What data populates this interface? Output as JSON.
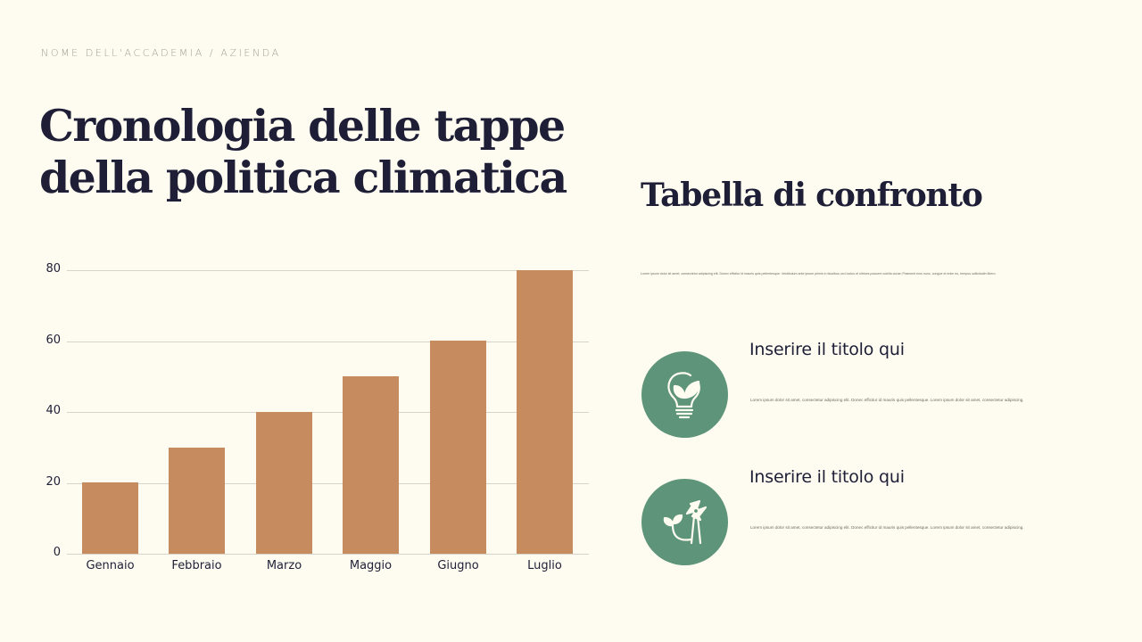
{
  "header": {
    "organization": "NOME DELL'ACCADEMIA / AZIENDA",
    "title": "Cronologia delle tappe della politica climatica"
  },
  "comparison": {
    "title": "Tabella di confronto",
    "intro": "Lorem ipsum dolor sit amet, consectetur adipiscing elit. Donec efficitur id mauris quis pellentesque. Vestibulum ante ipsum primis in faucibus orci luctus et ultrices posuere cubilia curae; Praesent eros nunc, congue et enim eu, tempus sollicitudin libero.",
    "items": [
      {
        "title": "Inserire il titolo qui",
        "description": "Lorem ipsum dolor sit amet, consectetur adipiscing elit. Donec efficitur id mauris quis pellentesque. Lorem ipsum dolor sit amet, consectetur adipiscing.",
        "icon": "lightbulb-leaf-icon"
      },
      {
        "title": "Inserire il titolo qui",
        "description": "Lorem ipsum dolor sit amet, consectetur adipiscing elit. Donec efficitur id mauris quis pellentesque. Lorem ipsum dolor sit amet, consectetur adipiscing.",
        "icon": "wind-turbine-sprout-icon"
      }
    ]
  },
  "colors": {
    "background": "#fefcf0",
    "bar": "#c78b60",
    "icon_circle": "#5e957a",
    "text_dark": "#1e1f36",
    "gridline": "#d6d4c8"
  },
  "chart_data": {
    "type": "bar",
    "title": "",
    "xlabel": "",
    "ylabel": "",
    "categories": [
      "Gennaio",
      "Febbraio",
      "Marzo",
      "Maggio",
      "Giugno",
      "Luglio"
    ],
    "values": [
      20,
      30,
      40,
      50,
      60,
      80
    ],
    "yticks": [
      0,
      20,
      40,
      60,
      80
    ],
    "ylim": [
      0,
      80
    ],
    "grid": true,
    "legend": null
  }
}
